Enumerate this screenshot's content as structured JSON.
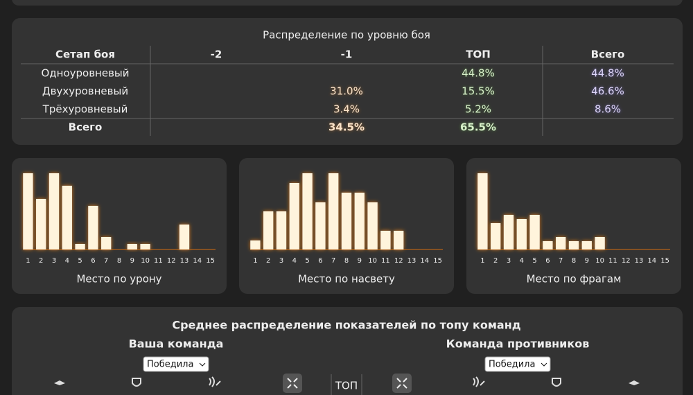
{
  "table": {
    "title": "Распределение по уровню боя",
    "headers": [
      "Сетап боя",
      "-2",
      "-1",
      "ТОП",
      "Всего"
    ],
    "rows": [
      [
        "Одноуровневый",
        null,
        null,
        "44.8%",
        "44.8%"
      ],
      [
        "Двухуровневый",
        null,
        "31.0%",
        "15.5%",
        "46.6%"
      ],
      [
        "Трёхуровневый",
        null,
        "3.4%",
        "5.2%",
        "8.6%"
      ],
      [
        "Всего",
        null,
        "34.5%",
        "65.5%",
        null
      ]
    ]
  },
  "chart_data": [
    {
      "type": "bar",
      "title": "Место по урону",
      "color": "#fff4dc",
      "categories": [
        "1",
        "2",
        "3",
        "4",
        "5",
        "6",
        "7",
        "8",
        "9",
        "10",
        "11",
        "12",
        "13",
        "14",
        "15"
      ],
      "values": [
        110,
        73,
        110,
        92,
        8,
        63,
        18,
        0,
        8,
        8,
        0,
        0,
        36,
        0,
        0
      ]
    },
    {
      "type": "bar",
      "title": "Место по насвету",
      "color": "#fff4dc",
      "categories": [
        "1",
        "2",
        "3",
        "4",
        "5",
        "6",
        "7",
        "8",
        "9",
        "10",
        "11",
        "12",
        "13",
        "14",
        "15"
      ],
      "values": [
        13,
        55,
        55,
        96,
        110,
        68,
        110,
        82,
        82,
        68,
        27,
        27,
        0,
        0,
        0
      ]
    },
    {
      "type": "bar",
      "title": "Место по фрагам",
      "color": "#fff4dc",
      "categories": [
        "1",
        "2",
        "3",
        "4",
        "5",
        "6",
        "7",
        "8",
        "9",
        "10",
        "11",
        "12",
        "13",
        "14",
        "15"
      ],
      "values": [
        110,
        38,
        50,
        44,
        50,
        12,
        18,
        12,
        12,
        18,
        0,
        0,
        0,
        0,
        0
      ]
    }
  ],
  "team_section": {
    "title": "Среднее распределение показателей по топу команд",
    "your_team": "Ваша команда",
    "enemy_team": "Команда противников",
    "your_filter": "Победила",
    "enemy_filter": "Победила",
    "center_label": "ТОП"
  }
}
